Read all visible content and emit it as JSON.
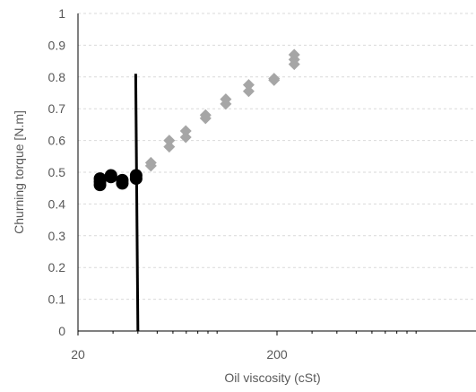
{
  "chart_data": {
    "type": "scatter",
    "title": "",
    "xlabel": "Oil viscosity (cSt)",
    "ylabel": "Churning torque [N.m]",
    "x_scale": "log",
    "xlim": [
      20,
      2000
    ],
    "ylim": [
      0,
      1
    ],
    "x_ticks": [
      "20",
      "200"
    ],
    "y_ticks": [
      "0",
      "0.1",
      "0.2",
      "0.3",
      "0.4",
      "0.5",
      "0.6",
      "0.7",
      "0.8",
      "0.9",
      "1"
    ],
    "grid": "horizontal, dashed, light gray",
    "colors": {
      "circles": "#000000",
      "diamonds": "#a6a6a6",
      "vertical_line": "#000000",
      "axis": "#000000",
      "grid": "#d9d9d9",
      "text": "#595959"
    },
    "series": [
      {
        "marker": "circle",
        "points": [
          {
            "x": 25.8,
            "y": 0.46
          },
          {
            "x": 25.8,
            "y": 0.47
          },
          {
            "x": 25.8,
            "y": 0.48
          },
          {
            "x": 29.3,
            "y": 0.485
          },
          {
            "x": 29.3,
            "y": 0.49
          },
          {
            "x": 33.4,
            "y": 0.465
          },
          {
            "x": 33.4,
            "y": 0.475
          },
          {
            "x": 39.2,
            "y": 0.48
          },
          {
            "x": 39.2,
            "y": 0.49
          }
        ]
      },
      {
        "marker": "diamond",
        "points": [
          {
            "x": 46.5,
            "y": 0.52
          },
          {
            "x": 46.5,
            "y": 0.53
          },
          {
            "x": 57.5,
            "y": 0.58
          },
          {
            "x": 57.5,
            "y": 0.6
          },
          {
            "x": 69.6,
            "y": 0.61
          },
          {
            "x": 69.6,
            "y": 0.63
          },
          {
            "x": 87.5,
            "y": 0.67
          },
          {
            "x": 87.5,
            "y": 0.68
          },
          {
            "x": 110.6,
            "y": 0.715
          },
          {
            "x": 110.6,
            "y": 0.73
          },
          {
            "x": 144.1,
            "y": 0.755
          },
          {
            "x": 144.1,
            "y": 0.775
          },
          {
            "x": 193.4,
            "y": 0.79
          },
          {
            "x": 193.4,
            "y": 0.795
          },
          {
            "x": 244.2,
            "y": 0.84
          },
          {
            "x": 244.2,
            "y": 0.855
          },
          {
            "x": 244.2,
            "y": 0.87
          }
        ]
      }
    ],
    "vertical_line": {
      "x_top": 39.0,
      "x_bottom": 40.0,
      "y_top": 0.81,
      "y_bottom": 0
    }
  }
}
